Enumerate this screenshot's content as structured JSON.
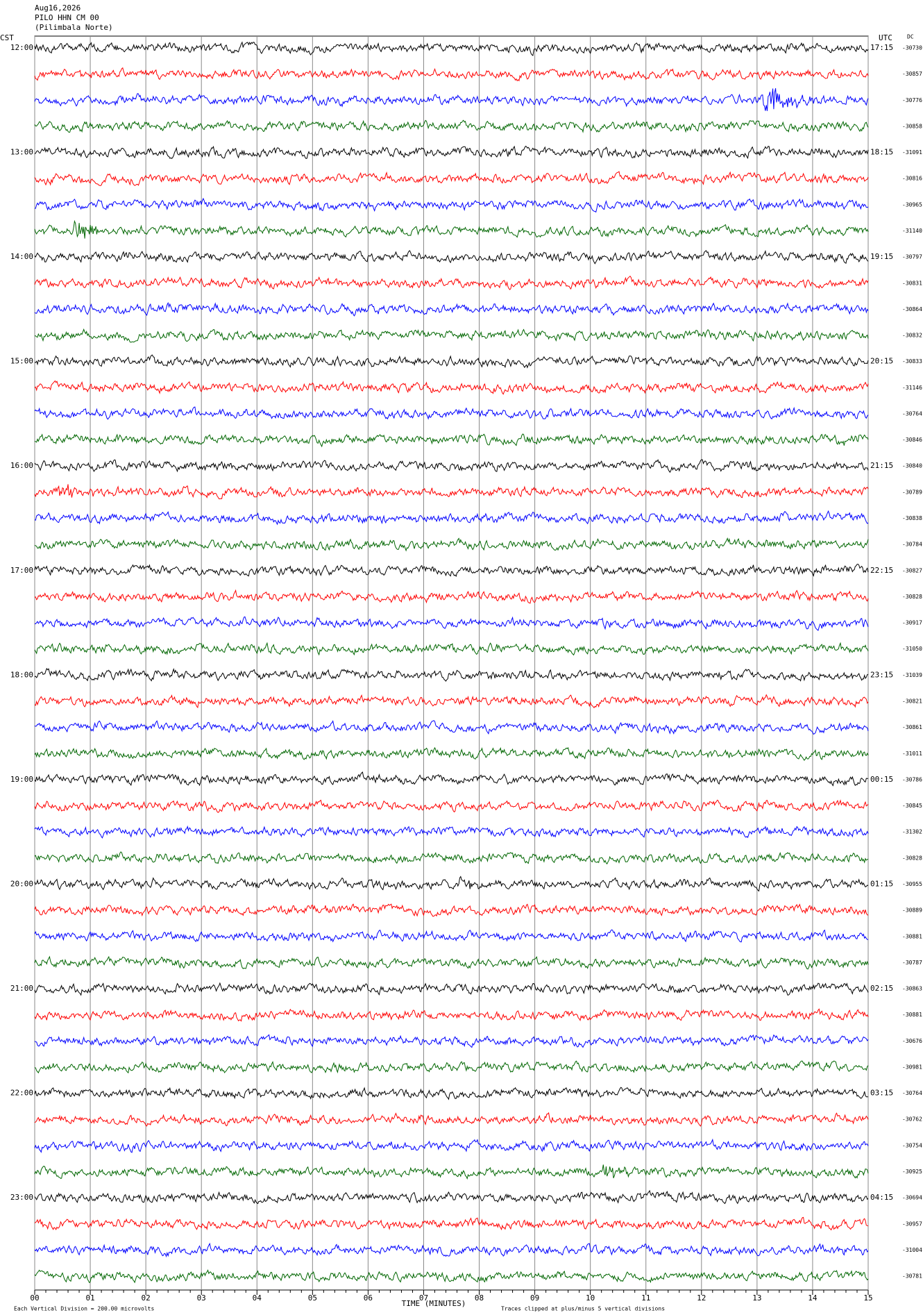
{
  "header": {
    "date": "Aug16,2026",
    "station": "PILO HHN CM 00",
    "location": "(Pilimbala Norte)"
  },
  "left_zone": "CST",
  "right_zone": "UTC",
  "dc_label": "DC",
  "left_times": [
    "12:00",
    "13:00",
    "14:00",
    "15:00",
    "16:00",
    "17:00",
    "18:00",
    "19:00",
    "20:00",
    "21:00",
    "22:00",
    "23:00"
  ],
  "right_times": [
    "17:15",
    "18:15",
    "19:15",
    "20:15",
    "21:15",
    "22:15",
    "23:15",
    "00:15",
    "01:15",
    "02:15",
    "03:15",
    "04:15"
  ],
  "dc_values": [
    -30730,
    -30857,
    -30776,
    -30858,
    -31091,
    -30816,
    -30965,
    -31140,
    -30797,
    -30831,
    -30864,
    -30832,
    -30833,
    -31146,
    -30764,
    -30846,
    -30840,
    -30789,
    -30838,
    -30784,
    -30827,
    -30828,
    -30917,
    -31050,
    -31039,
    -30821,
    -30861,
    -31011,
    -30786,
    -30845,
    -31302,
    -30828,
    -30955,
    -30889,
    -30881,
    -30787,
    -30863,
    -30881,
    -30676,
    -30981,
    -30764,
    -30762,
    -30754,
    -30925,
    -30694,
    -30957,
    -31004,
    -30781
  ],
  "x_ticks": [
    "00",
    "01",
    "02",
    "03",
    "04",
    "05",
    "06",
    "07",
    "08",
    "09",
    "10",
    "11",
    "12",
    "13",
    "14",
    "15"
  ],
  "x_axis_label": "TIME (MINUTES)",
  "footer_left": "Each Vertical Division =  200.00 microvolts",
  "footer_right": "Traces clipped at plus/minus 5 vertical divisions"
}
